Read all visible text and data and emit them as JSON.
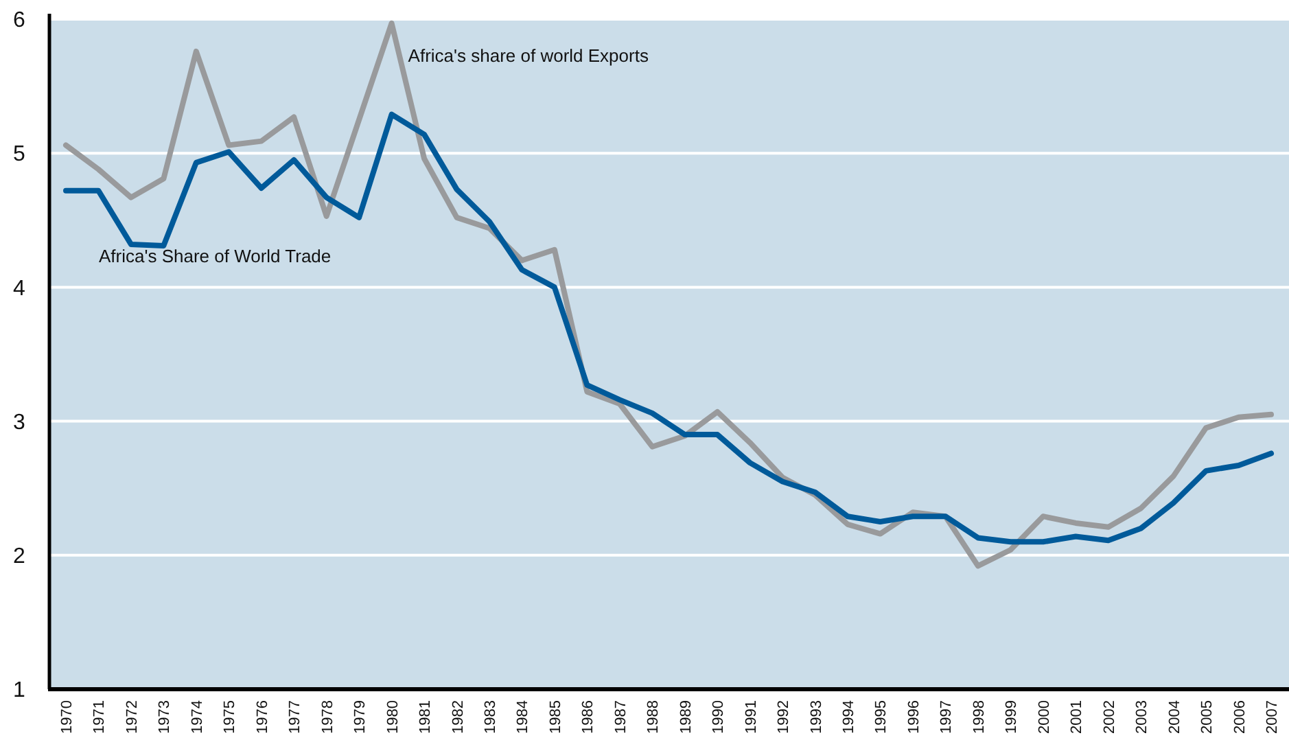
{
  "chart_data": {
    "type": "line",
    "categories": [
      "1970",
      "1971",
      "1972",
      "1973",
      "1974",
      "1975",
      "1976",
      "1977",
      "1978",
      "1979",
      "1980",
      "1981",
      "1982",
      "1983",
      "1984",
      "1985",
      "1986",
      "1987",
      "1988",
      "1989",
      "1990",
      "1991",
      "1992",
      "1993",
      "1994",
      "1995",
      "1996",
      "1997",
      "1998",
      "1999",
      "2000",
      "2001",
      "2002",
      "2003",
      "2004",
      "2005",
      "2006",
      "2007"
    ],
    "series": [
      {
        "name": "Africa's share of world Exports",
        "color": "#999a9c",
        "values": [
          5.06,
          4.88,
          4.67,
          4.81,
          5.76,
          5.06,
          5.09,
          5.27,
          4.53,
          5.25,
          5.97,
          4.96,
          4.52,
          4.44,
          4.2,
          4.28,
          3.22,
          3.13,
          2.81,
          2.89,
          3.07,
          2.84,
          2.58,
          2.45,
          2.23,
          2.16,
          2.32,
          2.29,
          1.92,
          2.04,
          2.29,
          2.24,
          2.21,
          2.35,
          2.59,
          2.95,
          3.03,
          3.05
        ]
      },
      {
        "name": "Africa's Share of World Trade",
        "color": "#005a9a",
        "values": [
          4.72,
          4.72,
          4.32,
          4.31,
          4.93,
          5.01,
          4.74,
          4.95,
          4.67,
          4.52,
          5.29,
          5.14,
          4.73,
          4.49,
          4.13,
          4.0,
          3.27,
          3.16,
          3.06,
          2.9,
          2.9,
          2.69,
          2.55,
          2.47,
          2.29,
          2.25,
          2.29,
          2.29,
          2.13,
          2.1,
          2.1,
          2.14,
          2.11,
          2.2,
          2.39,
          2.63,
          2.67,
          2.76
        ]
      }
    ],
    "ylim": [
      1,
      6
    ],
    "yticks": [
      1,
      2,
      3,
      4,
      5,
      6
    ],
    "grid": "y"
  }
}
